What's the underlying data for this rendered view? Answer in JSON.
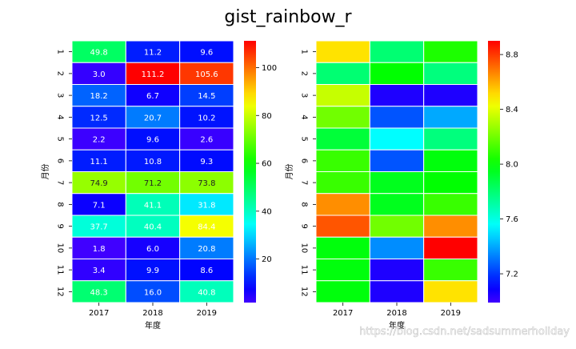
{
  "title": "gist_rainbow_r",
  "watermark": "https://blog.csdn.net/sadsummerholiday",
  "chart_data": [
    {
      "type": "heatmap",
      "colormap": "gist_rainbow_r",
      "xlabel": "年度",
      "ylabel": "月份",
      "x_categories": [
        "2017",
        "2018",
        "2019"
      ],
      "y_categories": [
        "1",
        "2",
        "3",
        "4",
        "5",
        "6",
        "7",
        "8",
        "9",
        "10",
        "11",
        "12"
      ],
      "annotate": true,
      "vmin": 1.8,
      "vmax": 111.2,
      "colorbar_ticks": [
        20,
        40,
        60,
        80,
        100
      ],
      "values": [
        [
          49.8,
          11.2,
          9.6
        ],
        [
          3.0,
          111.2,
          105.6
        ],
        [
          18.2,
          6.7,
          14.5
        ],
        [
          12.5,
          20.7,
          10.2
        ],
        [
          2.2,
          9.6,
          2.6
        ],
        [
          11.1,
          10.8,
          9.3
        ],
        [
          74.9,
          71.2,
          73.8
        ],
        [
          7.1,
          41.1,
          31.8
        ],
        [
          37.7,
          40.4,
          84.4
        ],
        [
          1.8,
          6.0,
          20.8
        ],
        [
          3.4,
          9.9,
          8.6
        ],
        [
          48.3,
          16.0,
          40.8
        ]
      ]
    },
    {
      "type": "heatmap",
      "colormap": "gist_rainbow_r",
      "xlabel": "年度",
      "ylabel": "月份",
      "x_categories": [
        "2017",
        "2018",
        "2019"
      ],
      "y_categories": [
        "1",
        "2",
        "3",
        "4",
        "5",
        "6",
        "7",
        "8",
        "9",
        "10",
        "11",
        "12"
      ],
      "annotate": false,
      "vmin": 6.99,
      "vmax": 8.9,
      "colorbar_ticks": [
        7.2,
        7.6,
        8.0,
        8.4,
        8.8
      ],
      "values": [
        [
          8.5,
          7.8,
          8.05
        ],
        [
          7.8,
          8.0,
          7.78
        ],
        [
          8.35,
          7.05,
          7.05
        ],
        [
          8.2,
          7.25,
          7.4
        ],
        [
          7.9,
          7.55,
          7.78
        ],
        [
          8.1,
          7.25,
          7.98
        ],
        [
          8.1,
          7.95,
          8.0
        ],
        [
          8.65,
          7.95,
          8.1
        ],
        [
          8.75,
          8.2,
          8.65
        ],
        [
          7.98,
          7.35,
          8.9
        ],
        [
          7.98,
          7.05,
          8.1
        ],
        [
          7.98,
          7.05,
          8.5
        ]
      ]
    }
  ]
}
